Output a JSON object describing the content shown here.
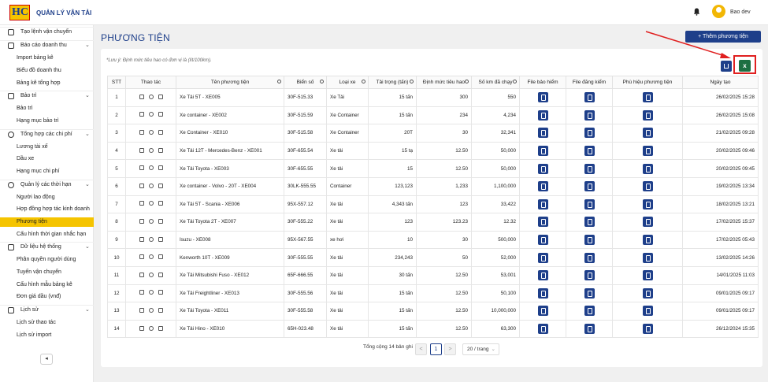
{
  "app": {
    "logo": "HC",
    "title": "QUẢN LÝ VẬN TẢI",
    "user": "Bao dev"
  },
  "sidebar": [
    {
      "type": "group",
      "label": "Tạo lệnh vận chuyển",
      "icon": "edit-icon"
    },
    {
      "type": "group",
      "label": "Báo cáo doanh thu",
      "icon": "report-icon",
      "expanded": true
    },
    {
      "type": "item",
      "label": "Import bảng kê"
    },
    {
      "type": "item",
      "label": "Biểu đồ doanh thu"
    },
    {
      "type": "item",
      "label": "Bảng kê tổng hợp"
    },
    {
      "type": "group",
      "label": "Bảo trì",
      "icon": "wrench-icon",
      "expanded": true
    },
    {
      "type": "item",
      "label": "Bảo trì"
    },
    {
      "type": "item",
      "label": "Hạng mục bảo trì"
    },
    {
      "type": "group",
      "label": "Tổng hợp các chi phí",
      "icon": "dollar-icon",
      "expanded": true
    },
    {
      "type": "item",
      "label": "Lương tài xế"
    },
    {
      "type": "item",
      "label": "Dầu xe"
    },
    {
      "type": "item",
      "label": "Hạng mục chi phí"
    },
    {
      "type": "group",
      "label": "Quản lý các thời hạn",
      "icon": "clock-icon",
      "expanded": true
    },
    {
      "type": "item",
      "label": "Người lao động"
    },
    {
      "type": "item",
      "label": "Hợp đồng hợp tác kinh doanh"
    },
    {
      "type": "item",
      "label": "Phương tiện",
      "active": true
    },
    {
      "type": "item",
      "label": "Cấu hình thời gian nhắc hạn"
    },
    {
      "type": "group",
      "label": "Dữ liệu hệ thống",
      "icon": "database-icon",
      "expanded": true
    },
    {
      "type": "item",
      "label": "Phân quyền người dùng"
    },
    {
      "type": "item",
      "label": "Tuyến vận chuyển"
    },
    {
      "type": "item",
      "label": "Cấu hình mẫu bảng kê"
    },
    {
      "type": "item",
      "label": "Đơn giá dầu (vnđ)"
    },
    {
      "type": "group",
      "label": "Lịch sử",
      "icon": "history-icon",
      "expanded": true
    },
    {
      "type": "item",
      "label": "Lịch sử thao tác"
    },
    {
      "type": "item",
      "label": "Lịch sử import"
    }
  ],
  "page": {
    "title": "PHƯƠNG TIỆN",
    "add_button": "Thêm phương tiện",
    "note": "*Lưu ý: Định mức tiêu hao có đơn vị là (lít/100km)."
  },
  "table": {
    "headers": [
      "STT",
      "Thao tác",
      "Tên phương tiện",
      "Biển số",
      "Loại xe",
      "Tải trọng (tấn)",
      "Định mức tiêu hao",
      "Số km đã chạy",
      "File bảo hiểm",
      "File đăng kiểm",
      "Phù hiệu phương tiện",
      "Ngày tạo"
    ],
    "rows": [
      [
        "1",
        "Xe Tải 5T - XE005",
        "30F-515.33",
        "Xe Tải",
        "15 tấn",
        "300",
        "550",
        "26/02/2025 15:28"
      ],
      [
        "2",
        "Xe container - XE002",
        "30F-515.59",
        "Xe Container",
        "15 tấn",
        "234",
        "4,234",
        "26/02/2025 15:08"
      ],
      [
        "3",
        "Xe Container - XE010",
        "30F-515.58",
        "Xe Container",
        "20T",
        "30",
        "32,341",
        "21/02/2025 09:28"
      ],
      [
        "4",
        "Xe Tải 12T - Mercedes-Benz - XE001",
        "30F-655.54",
        "Xe tải",
        "15 tạ",
        "12.50",
        "50,000",
        "20/02/2025 09:46"
      ],
      [
        "5",
        "Xe Tải Toyota - XE003",
        "30F-655.55",
        "Xe tải",
        "15",
        "12.50",
        "50,000",
        "20/02/2025 09:45"
      ],
      [
        "6",
        "Xe container - Volvo - 20T - XE004",
        "30LK-555.55",
        "Container",
        "123,123",
        "1,233",
        "1,100,000",
        "19/02/2025 13:34"
      ],
      [
        "7",
        "Xe Tải 5T - Scania - XE006",
        "95X-557.12",
        "Xe tải",
        "4,343 tấn",
        "123",
        "33,422",
        "18/02/2025 13:21"
      ],
      [
        "8",
        "Xe Tải Toyota 2T - XE007",
        "30F-555.22",
        "Xe tải",
        "123",
        "123.23",
        "12.32",
        "17/02/2025 15:37"
      ],
      [
        "9",
        "Isuzu - XE008",
        "95X-567.55",
        "xe hơi",
        "10",
        "30",
        "500,000",
        "17/02/2025 05:43"
      ],
      [
        "10",
        "Kenworth 10T - XE009",
        "30F-555.55",
        "Xe tải",
        "234,243",
        "50",
        "52,000",
        "13/02/2025 14:26"
      ],
      [
        "11",
        "Xe Tải Mitsubishi Fuso - XE012",
        "65F-666.55",
        "Xe tải",
        "30 tấn",
        "12.50",
        "53,001",
        "14/01/2025 11:03"
      ],
      [
        "12",
        "Xe Tải Freightliner - XE013",
        "30F-555.56",
        "Xe tải",
        "15 tấn",
        "12.50",
        "50,100",
        "09/01/2025 09:17"
      ],
      [
        "13",
        "Xe Tải Toyota - XE011",
        "30F-555.58",
        "Xe tải",
        "15 tấn",
        "12.50",
        "10,000,000",
        "09/01/2025 09:17"
      ],
      [
        "14",
        "Xe Tải Hino - XE010",
        "65H-023.48",
        "Xe tải",
        "15 tấn",
        "12.50",
        "63,300",
        "26/12/2024 15:35"
      ]
    ]
  },
  "pagination": {
    "summary": "Tổng cộng 14 bản ghi",
    "prev": "<",
    "page": "1",
    "next": ">",
    "page_size": "20 / trang"
  },
  "colors": {
    "primary": "#1e3f8a",
    "active": "#f5c400",
    "excel": "#1d6f42",
    "highlight": "#e02020"
  }
}
